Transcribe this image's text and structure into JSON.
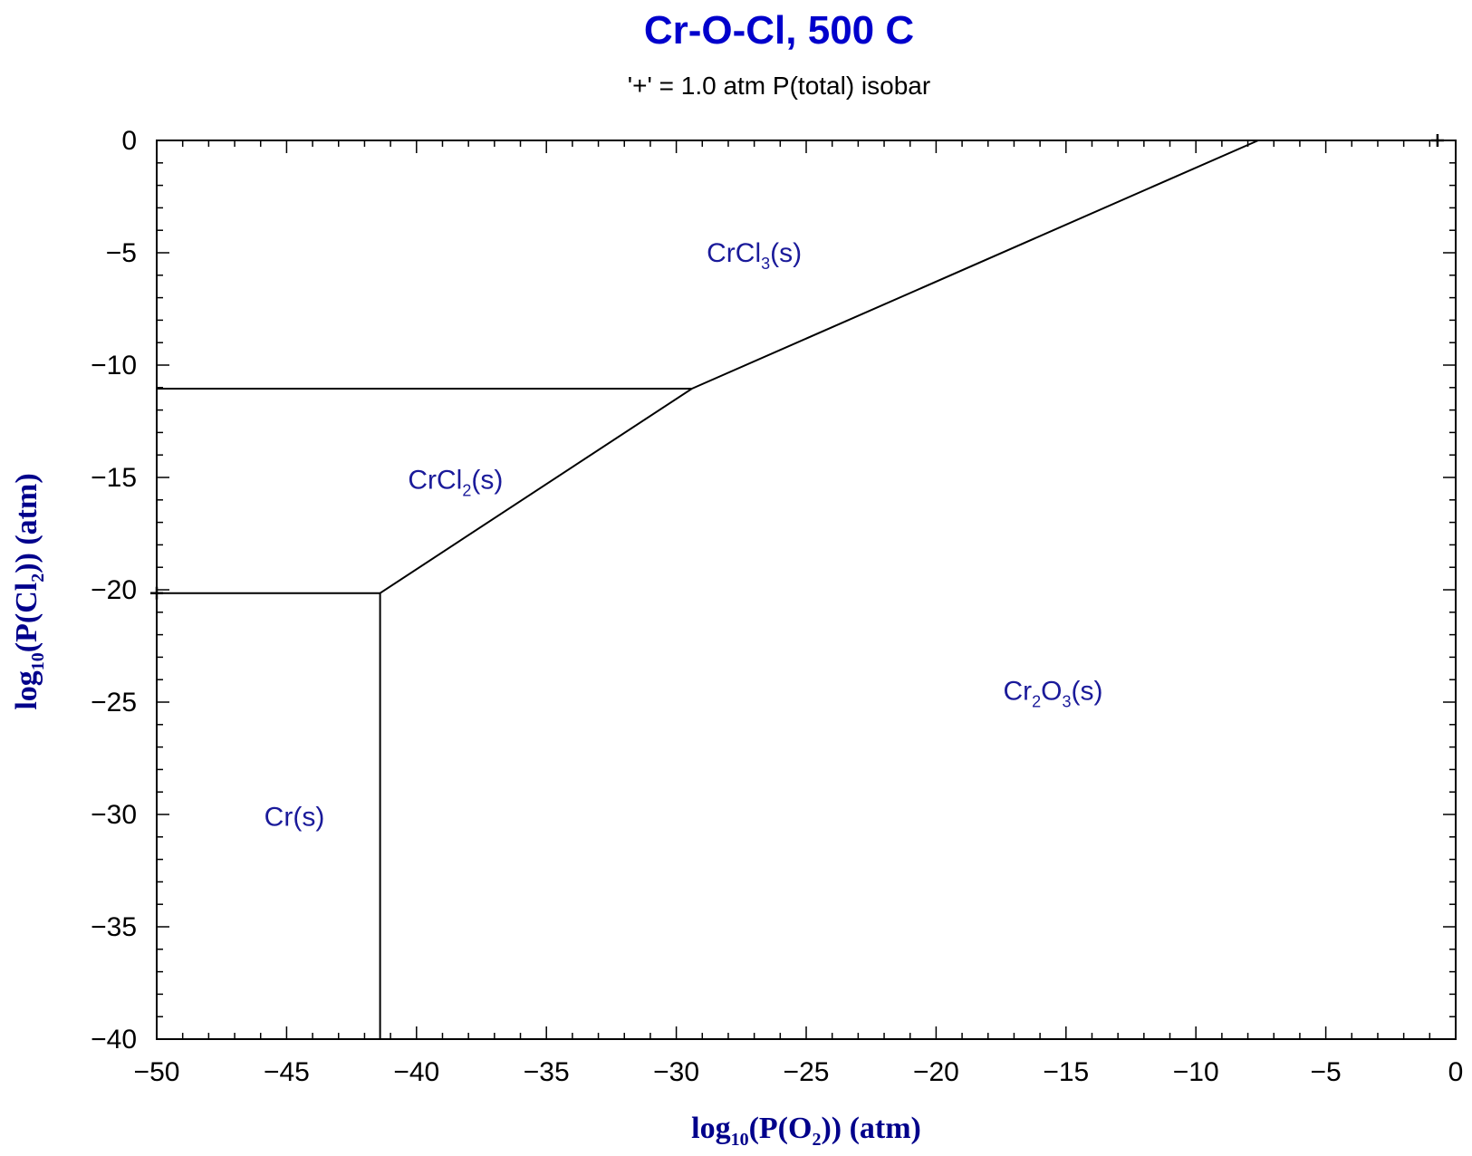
{
  "chart_data": {
    "type": "line",
    "title": "Cr-O-Cl, 500 C",
    "subtitle": "'+' = 1.0 atm P(total) isobar",
    "xlabel": {
      "pre": "log",
      "sub1": "10",
      "mid": "(P(O",
      "sub2": "2",
      "post": ")) (atm)"
    },
    "ylabel": {
      "pre": "log",
      "sub1": "10",
      "mid": "(P(Cl",
      "sub2": "2",
      "post": ")) (atm)"
    },
    "xlim": [
      -50,
      0
    ],
    "ylim": [
      -40,
      0
    ],
    "x_ticks": [
      -50,
      -45,
      -40,
      -35,
      -30,
      -25,
      -20,
      -15,
      -10,
      -5,
      0
    ],
    "x_tick_labels": [
      "−50",
      "−45",
      "−40",
      "−35",
      "−30",
      "−25",
      "−20",
      "−15",
      "−10",
      "−5",
      "0"
    ],
    "y_ticks": [
      0,
      -5,
      -10,
      -15,
      -20,
      -25,
      -30,
      -35,
      -40
    ],
    "y_tick_labels": [
      "0",
      "−5",
      "−10",
      "−15",
      "−20",
      "−25",
      "−30",
      "−35",
      "−40"
    ],
    "boundaries": [
      {
        "name": "CrCl3-CrCl2",
        "points": [
          [
            -50,
            -11.05
          ],
          [
            -29.4,
            -11.05
          ]
        ]
      },
      {
        "name": "CrCl3-Cr2O3",
        "points": [
          [
            -29.4,
            -11.05
          ],
          [
            -7.6,
            0
          ]
        ]
      },
      {
        "name": "CrCl2-Cr2O3",
        "points": [
          [
            -41.4,
            -20.15
          ],
          [
            -29.4,
            -11.05
          ]
        ]
      },
      {
        "name": "Cr-CrCl2",
        "points": [
          [
            -50,
            -20.15
          ],
          [
            -41.4,
            -20.15
          ]
        ]
      },
      {
        "name": "Cr-Cr2O3",
        "points": [
          [
            -41.4,
            -20.15
          ],
          [
            -41.4,
            -40
          ]
        ]
      }
    ],
    "isobar_markers": [
      [
        -0.7,
        0
      ],
      [
        -50,
        -20.15
      ]
    ],
    "regions": [
      {
        "name": "CrCl3(s)",
        "parts": [
          [
            "CrCl",
            false
          ],
          [
            "3",
            true
          ],
          [
            "(s)",
            false
          ]
        ],
        "x": -27,
        "y": -5
      },
      {
        "name": "CrCl2(s)",
        "parts": [
          [
            "CrCl",
            false
          ],
          [
            "2",
            true
          ],
          [
            "(s)",
            false
          ]
        ],
        "x": -38.5,
        "y": -15.1
      },
      {
        "name": "Cr2O3(s)",
        "parts": [
          [
            "Cr",
            false
          ],
          [
            "2",
            true
          ],
          [
            "O",
            false
          ],
          [
            "3",
            true
          ],
          [
            "(s)",
            false
          ]
        ],
        "x": -15.5,
        "y": -24.5
      },
      {
        "name": "Cr(s)",
        "parts": [
          [
            "Cr(s)",
            false
          ]
        ],
        "x": -44.7,
        "y": -30.1
      }
    ],
    "colors": {
      "title": "#0000cc",
      "axis_label": "#00008b",
      "region_label": "#1a1a9a",
      "lines": "#000000"
    }
  }
}
